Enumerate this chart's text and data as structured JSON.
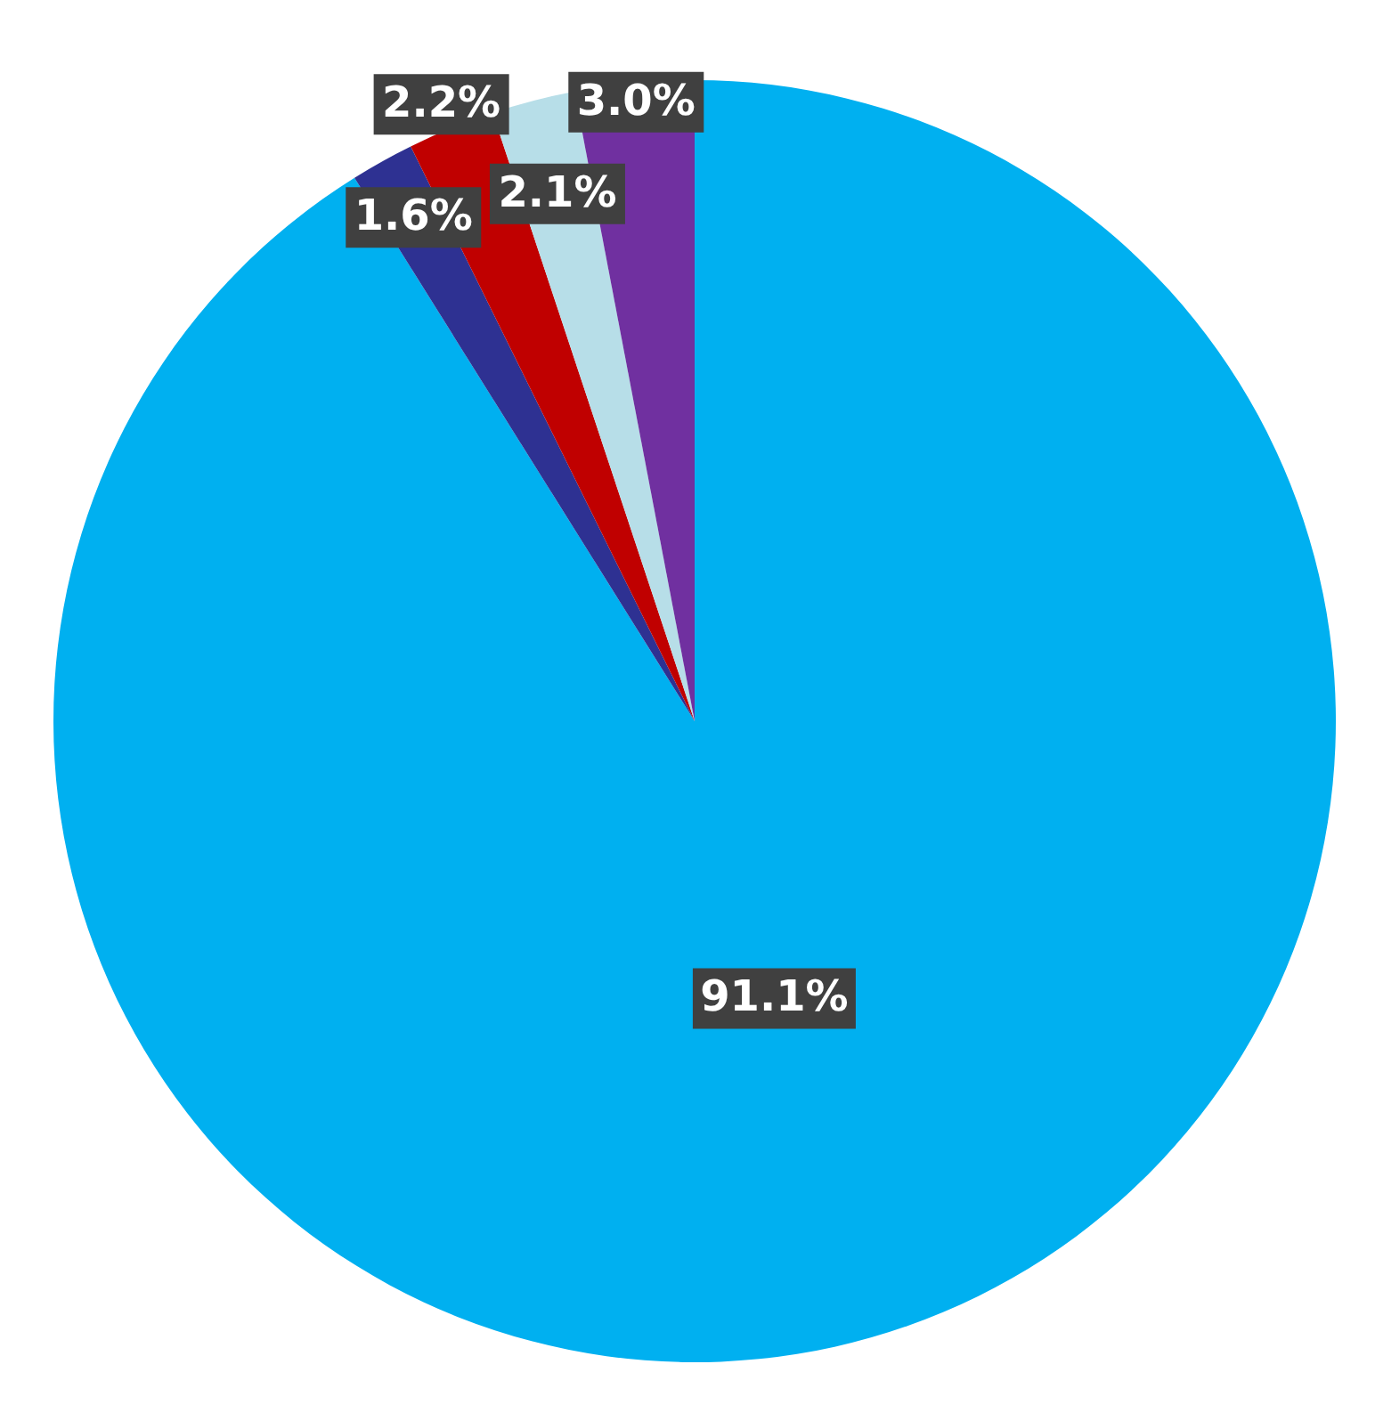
{
  "chart_data": {
    "type": "pie",
    "categories": [
      null,
      null,
      null,
      null,
      null
    ],
    "values": [
      91.1,
      1.6,
      2.2,
      2.1,
      3.0
    ],
    "colors": [
      "#00b0f0",
      "#2e3192",
      "#c00000",
      "#b7dee8",
      "#7030a0"
    ],
    "value_labels": [
      "91.1%",
      "1.6%",
      "2.2%",
      "2.1%",
      "3.0%"
    ]
  }
}
